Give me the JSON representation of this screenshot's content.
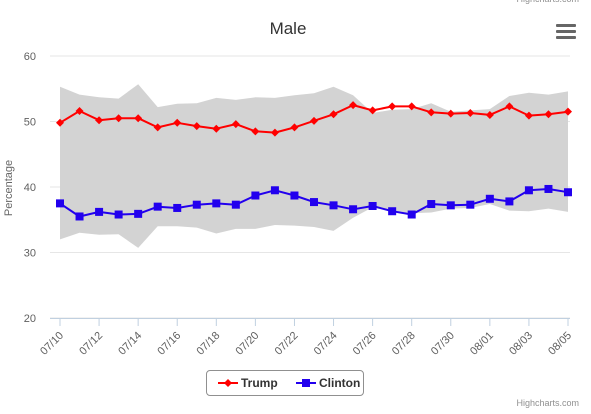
{
  "credits": "Highcharts.com",
  "menu_icon": "hamburger-menu-icon",
  "chart_data": {
    "type": "line",
    "title": "Male",
    "ylabel": "Percentage",
    "xlabel": "",
    "ylim": [
      20,
      60
    ],
    "yticks": [
      20,
      30,
      40,
      50,
      60
    ],
    "grid": true,
    "legend_position": "bottom-center",
    "x": [
      "07/10",
      "07/11",
      "07/12",
      "07/13",
      "07/14",
      "07/15",
      "07/16",
      "07/17",
      "07/18",
      "07/19",
      "07/20",
      "07/21",
      "07/22",
      "07/23",
      "07/24",
      "07/25",
      "07/26",
      "07/27",
      "07/28",
      "07/29",
      "07/30",
      "07/31",
      "08/01",
      "08/02",
      "08/03",
      "08/04",
      "08/05"
    ],
    "x_tick_labels": [
      "07/10",
      "07/12",
      "07/14",
      "07/16",
      "07/18",
      "07/20",
      "07/22",
      "07/24",
      "07/26",
      "07/28",
      "07/30",
      "08/01",
      "08/03",
      "08/05"
    ],
    "series": [
      {
        "name": "Trump",
        "color": "#ff0000",
        "marker": "diamond",
        "values": [
          49.8,
          51.6,
          50.2,
          50.5,
          50.5,
          49.1,
          49.8,
          49.3,
          48.9,
          49.6,
          48.5,
          48.3,
          49.1,
          50.1,
          51.1,
          52.5,
          51.7,
          52.3,
          52.3,
          51.4,
          51.2,
          51.3,
          51.0,
          52.3,
          50.9,
          51.1,
          51.5
        ]
      },
      {
        "name": "Clinton",
        "color": "#2200ee",
        "marker": "square",
        "values": [
          37.5,
          35.5,
          36.2,
          35.8,
          35.9,
          37.0,
          36.8,
          37.3,
          37.5,
          37.3,
          38.7,
          39.5,
          38.7,
          37.7,
          37.2,
          36.6,
          37.1,
          36.3,
          35.8,
          37.4,
          37.2,
          37.3,
          38.2,
          37.8,
          39.5,
          39.7,
          39.2
        ]
      }
    ],
    "range_band": {
      "color": "#d3d3d3",
      "upper": [
        55.3,
        54.1,
        53.7,
        53.5,
        55.7,
        52.2,
        52.7,
        52.8,
        53.6,
        53.3,
        53.7,
        53.6,
        54.0,
        54.3,
        55.3,
        54.0,
        51.3,
        51.8,
        51.9,
        52.8,
        51.5,
        51.7,
        51.9,
        53.9,
        54.4,
        54.1,
        54.6
      ],
      "lower": [
        32.0,
        33.0,
        32.7,
        32.8,
        30.7,
        34.0,
        34.0,
        33.8,
        32.9,
        33.6,
        33.6,
        34.2,
        34.1,
        33.9,
        33.3,
        35.3,
        36.9,
        36.4,
        36.0,
        36.1,
        36.7,
        36.8,
        37.4,
        36.4,
        36.3,
        36.7,
        36.2
      ]
    }
  }
}
